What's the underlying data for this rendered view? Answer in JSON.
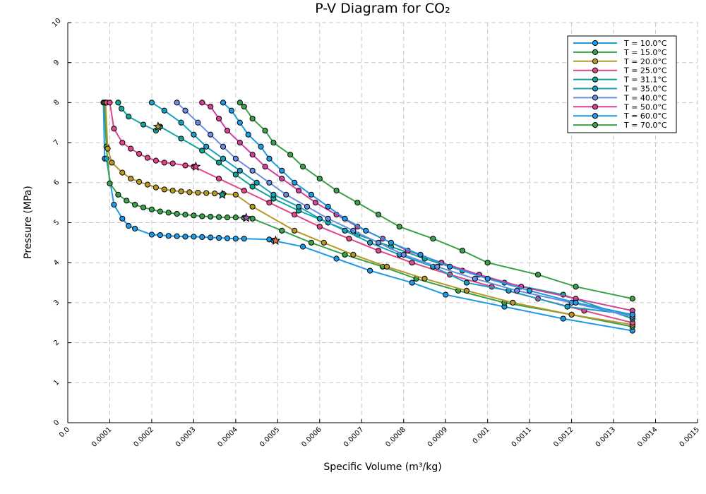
{
  "chart_data": {
    "type": "line",
    "title": "P-V Diagram for CO₂",
    "xlabel": "Specific Volume (m³/kg)",
    "ylabel": "Pressure (MPa)",
    "xlim": [
      0.0,
      0.0015
    ],
    "ylim": [
      0,
      10
    ],
    "grid": true,
    "legend_position": "top-right",
    "x_ticks": [
      "0.0",
      "0.0001",
      "0.0002",
      "0.0003",
      "0.0004",
      "0.0005",
      "0.0006",
      "0.0007",
      "0.0008",
      "0.0009",
      "0.001",
      "0.0011",
      "0.0012",
      "0.0013",
      "0.0014",
      "0.0015"
    ],
    "y_ticks": [
      "0",
      "1",
      "2",
      "3",
      "4",
      "5",
      "6",
      "7",
      "8",
      "9",
      "10"
    ],
    "series": [
      {
        "name": "T = 10.0°C",
        "color": "#1f9be6",
        "x": [
          8.5e-05,
          8.8e-05,
          9.2e-05,
          0.00011,
          0.00013,
          0.000145,
          0.00016,
          0.0002,
          0.00022,
          0.00024,
          0.00026,
          0.00028,
          0.0003,
          0.00032,
          0.00034,
          0.00036,
          0.00038,
          0.0004,
          0.00042,
          0.00048,
          0.00049,
          0.00056,
          0.00064,
          0.00072,
          0.00082,
          0.0009,
          0.00104,
          0.00118,
          0.001345
        ],
        "y": [
          8.0,
          6.6,
          6.6,
          5.45,
          5.1,
          4.92,
          4.85,
          4.7,
          4.69,
          4.67,
          4.66,
          4.65,
          4.65,
          4.64,
          4.63,
          4.62,
          4.61,
          4.6,
          4.6,
          4.58,
          4.55,
          4.4,
          4.1,
          3.8,
          3.5,
          3.2,
          2.9,
          2.6,
          2.3
        ]
      },
      {
        "name": "T = 15.0°C",
        "color": "#3aa14a",
        "x": [
          8.7e-05,
          9.2e-05,
          0.0001,
          0.00012,
          0.00014,
          0.00016,
          0.00018,
          0.0002,
          0.00022,
          0.00024,
          0.00026,
          0.00028,
          0.0003,
          0.00032,
          0.00034,
          0.00036,
          0.00038,
          0.0004,
          0.00042,
          0.00044,
          0.00051,
          0.00058,
          0.00066,
          0.00075,
          0.00083,
          0.00093,
          0.00104,
          0.0012,
          0.001345
        ],
        "y": [
          8.0,
          6.9,
          5.98,
          5.7,
          5.55,
          5.45,
          5.38,
          5.33,
          5.28,
          5.25,
          5.22,
          5.2,
          5.18,
          5.16,
          5.15,
          5.14,
          5.13,
          5.13,
          5.12,
          5.1,
          4.8,
          4.5,
          4.2,
          3.9,
          3.6,
          3.3,
          3.0,
          2.7,
          2.4
        ]
      },
      {
        "name": "T = 20.0°C",
        "color": "#b8982a",
        "x": [
          9e-05,
          9.5e-05,
          0.000105,
          0.00013,
          0.00015,
          0.00017,
          0.00019,
          0.00021,
          0.00023,
          0.00025,
          0.00027,
          0.00029,
          0.00031,
          0.00033,
          0.00035,
          0.00037,
          0.0004,
          0.00044,
          0.00054,
          0.00061,
          0.00068,
          0.00076,
          0.00085,
          0.00095,
          0.00106,
          0.0012,
          0.001345
        ],
        "y": [
          8.0,
          6.85,
          6.5,
          6.25,
          6.1,
          6.02,
          5.95,
          5.88,
          5.83,
          5.8,
          5.78,
          5.76,
          5.75,
          5.74,
          5.73,
          5.72,
          5.7,
          5.4,
          4.8,
          4.5,
          4.2,
          3.9,
          3.6,
          3.3,
          3.0,
          2.7,
          2.45
        ]
      },
      {
        "name": "T = 25.0°C",
        "color": "#e0468a",
        "x": [
          9.3e-05,
          0.0001,
          0.00011,
          0.00013,
          0.00015,
          0.00017,
          0.00019,
          0.00021,
          0.00023,
          0.00025,
          0.00028,
          0.0003,
          0.00036,
          0.00042,
          0.00048,
          0.00054,
          0.0006,
          0.00067,
          0.00074,
          0.00082,
          0.00091,
          0.00101,
          0.00112,
          0.00123,
          0.001345
        ],
        "y": [
          8.0,
          8.0,
          7.35,
          7.0,
          6.85,
          6.72,
          6.62,
          6.55,
          6.5,
          6.48,
          6.43,
          6.4,
          6.1,
          5.8,
          5.5,
          5.2,
          4.9,
          4.6,
          4.3,
          4.0,
          3.7,
          3.4,
          3.1,
          2.8,
          2.5
        ]
      },
      {
        "name": "T = 31.1°C",
        "color": "#13a59a",
        "x": [
          0.00012,
          0.000128,
          0.000145,
          0.00018,
          0.00021,
          0.00022,
          0.00027,
          0.00032,
          0.00036,
          0.0004,
          0.00044,
          0.00049,
          0.00055,
          0.00062,
          0.00069,
          0.00077,
          0.00085,
          0.00094,
          0.00104,
          0.00118,
          0.001345
        ],
        "y": [
          8.0,
          7.85,
          7.65,
          7.45,
          7.3,
          7.4,
          7.1,
          6.8,
          6.5,
          6.2,
          5.9,
          5.6,
          5.3,
          5.0,
          4.7,
          4.4,
          4.1,
          3.8,
          3.5,
          3.2,
          2.6
        ]
      },
      {
        "name": "T = 35.0°C",
        "color": "#1aa0c2",
        "x": [
          0.0002,
          0.00023,
          0.00027,
          0.0003,
          0.00033,
          0.00037,
          0.00041,
          0.00045,
          0.00049,
          0.00055,
          0.0006,
          0.00066,
          0.00072,
          0.00079,
          0.00087,
          0.00095,
          0.00105,
          0.00119,
          0.001345
        ],
        "y": [
          8.0,
          7.8,
          7.5,
          7.2,
          6.9,
          6.6,
          6.3,
          6.0,
          5.7,
          5.4,
          5.1,
          4.8,
          4.5,
          4.2,
          3.9,
          3.5,
          3.3,
          2.9,
          2.7
        ]
      },
      {
        "name": "T = 40.0°C",
        "color": "#6a8ee0",
        "x": [
          0.00026,
          0.00028,
          0.00031,
          0.00034,
          0.00037,
          0.0004,
          0.00044,
          0.00048,
          0.00052,
          0.00057,
          0.00062,
          0.00068,
          0.00074,
          0.0008,
          0.00088,
          0.00097,
          0.00107,
          0.0012,
          0.001345
        ],
        "y": [
          8.0,
          7.8,
          7.5,
          7.2,
          6.9,
          6.6,
          6.3,
          6.0,
          5.7,
          5.4,
          5.1,
          4.8,
          4.5,
          4.2,
          3.9,
          3.6,
          3.3,
          3.0,
          2.65
        ]
      },
      {
        "name": "T = 50.0°C",
        "color": "#d2409c",
        "x": [
          0.00032,
          0.00034,
          0.00036,
          0.00038,
          0.00041,
          0.00044,
          0.00047,
          0.00051,
          0.00055,
          0.00059,
          0.00064,
          0.00069,
          0.00075,
          0.00081,
          0.00089,
          0.00098,
          0.00108,
          0.00121,
          0.001345
        ],
        "y": [
          8.0,
          7.9,
          7.6,
          7.3,
          7.0,
          6.7,
          6.4,
          6.1,
          5.8,
          5.5,
          5.2,
          4.9,
          4.6,
          4.3,
          4.0,
          3.7,
          3.4,
          3.1,
          2.8
        ]
      },
      {
        "name": "T = 60.0°C",
        "color": "#1f9be6",
        "x": [
          0.00037,
          0.00039,
          0.00041,
          0.00043,
          0.00046,
          0.00048,
          0.00051,
          0.00054,
          0.00058,
          0.00062,
          0.00066,
          0.00071,
          0.00077,
          0.00084,
          0.00091,
          0.001,
          0.0011,
          0.00121,
          0.001345
        ],
        "y": [
          8.0,
          7.8,
          7.5,
          7.2,
          6.9,
          6.6,
          6.3,
          6.0,
          5.7,
          5.4,
          5.1,
          4.8,
          4.5,
          4.2,
          3.9,
          3.6,
          3.3,
          3.0,
          2.7
        ]
      },
      {
        "name": "T = 70.0°C",
        "color": "#3aa14a",
        "x": [
          0.00041,
          0.00042,
          0.00044,
          0.00047,
          0.00049,
          0.00053,
          0.00056,
          0.0006,
          0.00064,
          0.00069,
          0.00074,
          0.00079,
          0.00087,
          0.00094,
          0.001,
          0.00112,
          0.00121,
          0.001345
        ],
        "y": [
          8.0,
          7.9,
          7.6,
          7.3,
          7.0,
          6.7,
          6.4,
          6.1,
          5.8,
          5.5,
          5.2,
          4.9,
          4.6,
          4.3,
          4.0,
          3.7,
          3.4,
          3.1
        ]
      }
    ],
    "saturation_markers": [
      {
        "x": 0.000495,
        "y": 4.55,
        "color": "#e8722a"
      },
      {
        "x": 0.000425,
        "y": 5.12,
        "color": "#9b59b6"
      },
      {
        "x": 0.000368,
        "y": 5.7,
        "color": "#13a59a"
      },
      {
        "x": 0.000305,
        "y": 6.4,
        "color": "#e0468a"
      },
      {
        "x": 0.000215,
        "y": 7.4,
        "color": "#b8982a"
      }
    ]
  }
}
